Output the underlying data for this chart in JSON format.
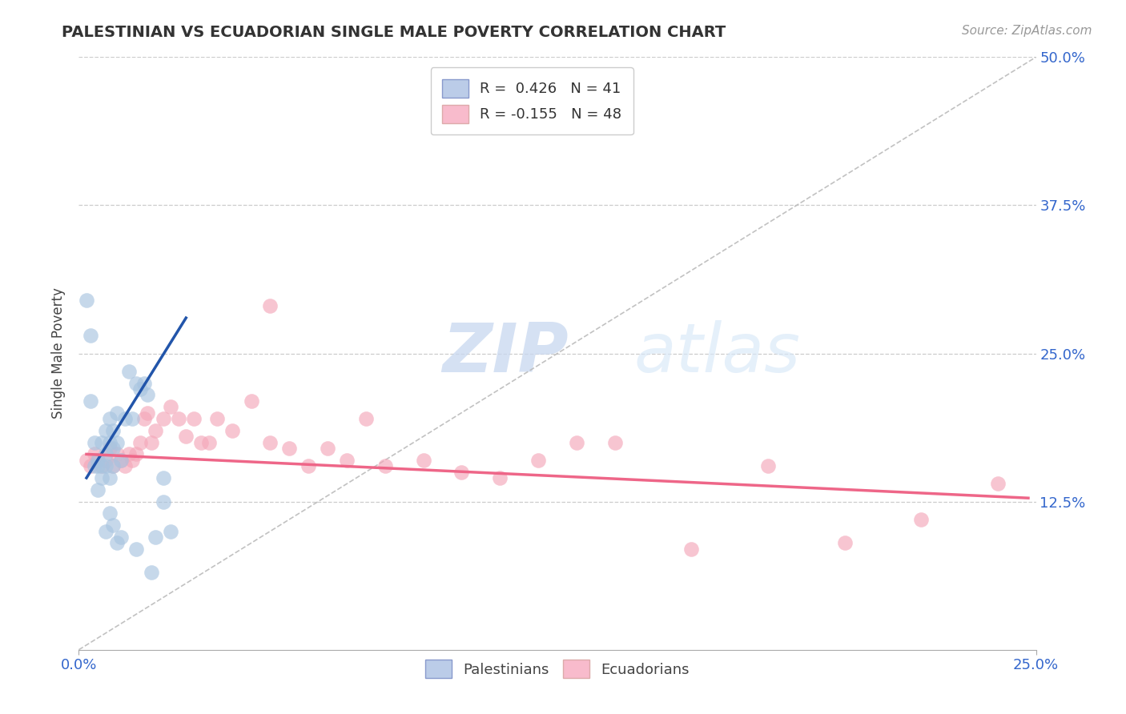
{
  "title": "PALESTINIAN VS ECUADORIAN SINGLE MALE POVERTY CORRELATION CHART",
  "source": "Source: ZipAtlas.com",
  "xlim": [
    0.0,
    0.25
  ],
  "ylim": [
    0.0,
    0.5
  ],
  "palestinian_R": 0.426,
  "palestinian_N": 41,
  "ecuadorian_R": -0.155,
  "ecuadorian_N": 48,
  "blue_color": "#A8C4E0",
  "pink_color": "#F4A7B9",
  "blue_line_color": "#2255AA",
  "pink_line_color": "#EE6688",
  "legend_label_blue": "Palestinians",
  "legend_label_pink": "Ecuadorians",
  "bg_color": "#FFFFFF",
  "grid_color": "#CCCCCC",
  "palestinian_x": [
    0.002,
    0.003,
    0.003,
    0.004,
    0.004,
    0.005,
    0.005,
    0.005,
    0.006,
    0.006,
    0.006,
    0.007,
    0.007,
    0.007,
    0.008,
    0.008,
    0.008,
    0.009,
    0.009,
    0.009,
    0.01,
    0.01,
    0.011,
    0.012,
    0.013,
    0.014,
    0.015,
    0.016,
    0.017,
    0.018,
    0.02,
    0.022,
    0.022,
    0.024,
    0.007,
    0.008,
    0.009,
    0.01,
    0.011,
    0.015,
    0.019
  ],
  "palestinian_y": [
    0.295,
    0.265,
    0.21,
    0.175,
    0.155,
    0.16,
    0.155,
    0.135,
    0.175,
    0.155,
    0.145,
    0.185,
    0.165,
    0.155,
    0.195,
    0.175,
    0.145,
    0.185,
    0.17,
    0.155,
    0.2,
    0.175,
    0.16,
    0.195,
    0.235,
    0.195,
    0.225,
    0.22,
    0.225,
    0.215,
    0.095,
    0.145,
    0.125,
    0.1,
    0.1,
    0.115,
    0.105,
    0.09,
    0.095,
    0.085,
    0.065
  ],
  "ecuadorian_x": [
    0.002,
    0.003,
    0.004,
    0.005,
    0.006,
    0.007,
    0.008,
    0.009,
    0.01,
    0.011,
    0.012,
    0.013,
    0.014,
    0.015,
    0.016,
    0.017,
    0.018,
    0.019,
    0.02,
    0.022,
    0.024,
    0.026,
    0.028,
    0.03,
    0.032,
    0.034,
    0.036,
    0.04,
    0.045,
    0.05,
    0.055,
    0.06,
    0.065,
    0.07,
    0.08,
    0.09,
    0.1,
    0.11,
    0.12,
    0.14,
    0.16,
    0.18,
    0.2,
    0.22,
    0.24,
    0.05,
    0.075,
    0.13
  ],
  "ecuadorian_y": [
    0.16,
    0.155,
    0.165,
    0.16,
    0.155,
    0.16,
    0.17,
    0.155,
    0.165,
    0.16,
    0.155,
    0.165,
    0.16,
    0.165,
    0.175,
    0.195,
    0.2,
    0.175,
    0.185,
    0.195,
    0.205,
    0.195,
    0.18,
    0.195,
    0.175,
    0.175,
    0.195,
    0.185,
    0.21,
    0.175,
    0.17,
    0.155,
    0.17,
    0.16,
    0.155,
    0.16,
    0.15,
    0.145,
    0.16,
    0.175,
    0.085,
    0.155,
    0.09,
    0.11,
    0.14,
    0.29,
    0.195,
    0.175
  ],
  "pal_trend_x": [
    0.002,
    0.028
  ],
  "pal_trend_y": [
    0.145,
    0.28
  ],
  "ecu_trend_x": [
    0.002,
    0.248
  ],
  "ecu_trend_y": [
    0.165,
    0.128
  ]
}
